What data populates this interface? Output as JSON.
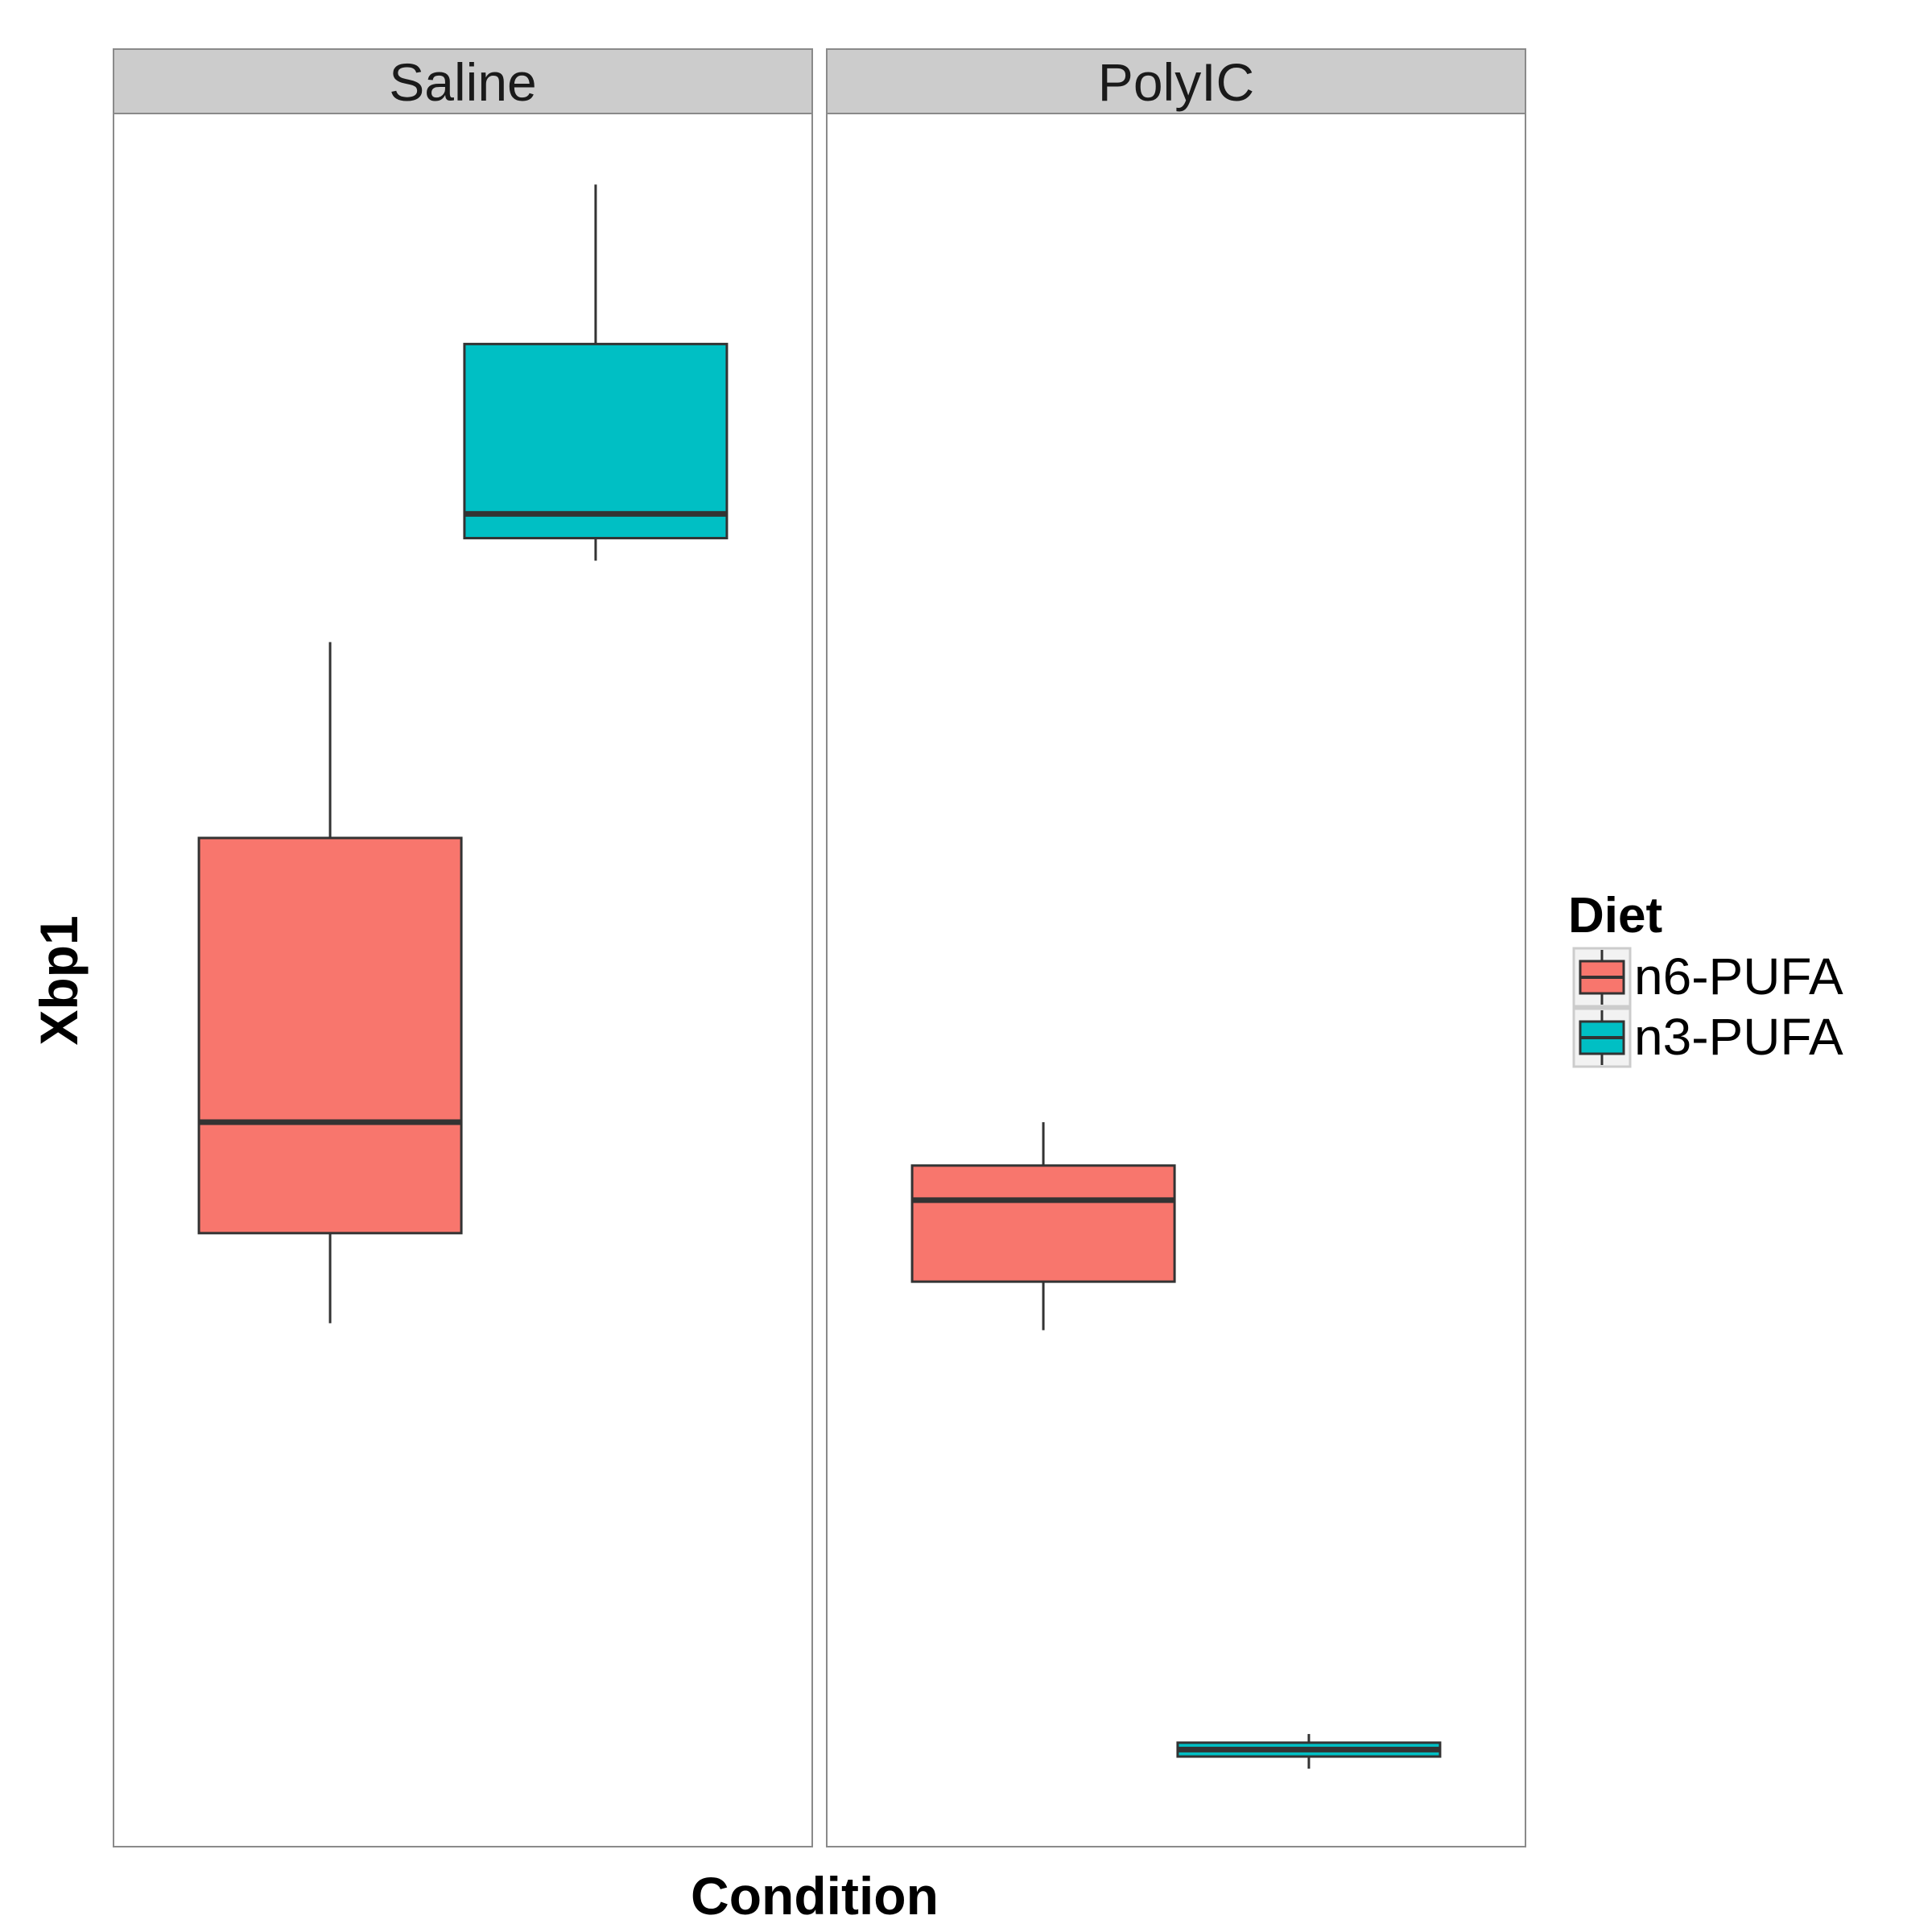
{
  "chart_data": {
    "type": "boxplot",
    "facets": [
      "Saline",
      "PolyIC"
    ],
    "xlabel": "Condition",
    "ylabel": "Xbp1",
    "legend": {
      "title": "Diet",
      "position": "right",
      "entries": [
        {
          "name": "n6-PUFA",
          "color": "#F8766D"
        },
        {
          "name": "n3-PUFA",
          "color": "#00BFC4"
        }
      ]
    },
    "ylim": [
      0,
      100
    ],
    "y_ticks_shown": false,
    "grid": false,
    "series": [
      {
        "name": "n6-PUFA",
        "color": "#F8766D",
        "boxes": [
          {
            "facet": "Saline",
            "min": 30.2,
            "q1": 35.4,
            "median": 41.8,
            "q3": 58.2,
            "max": 69.5
          },
          {
            "facet": "PolyIC",
            "min": 29.8,
            "q1": 32.6,
            "median": 37.3,
            "q3": 39.3,
            "max": 41.8
          }
        ]
      },
      {
        "name": "n3-PUFA",
        "color": "#00BFC4",
        "boxes": [
          {
            "facet": "Saline",
            "min": 74.2,
            "q1": 75.5,
            "median": 76.9,
            "q3": 86.7,
            "max": 95.9
          },
          {
            "facet": "PolyIC",
            "min": 4.5,
            "q1": 5.2,
            "median": 5.6,
            "q3": 6.0,
            "max": 6.5
          }
        ]
      }
    ]
  }
}
